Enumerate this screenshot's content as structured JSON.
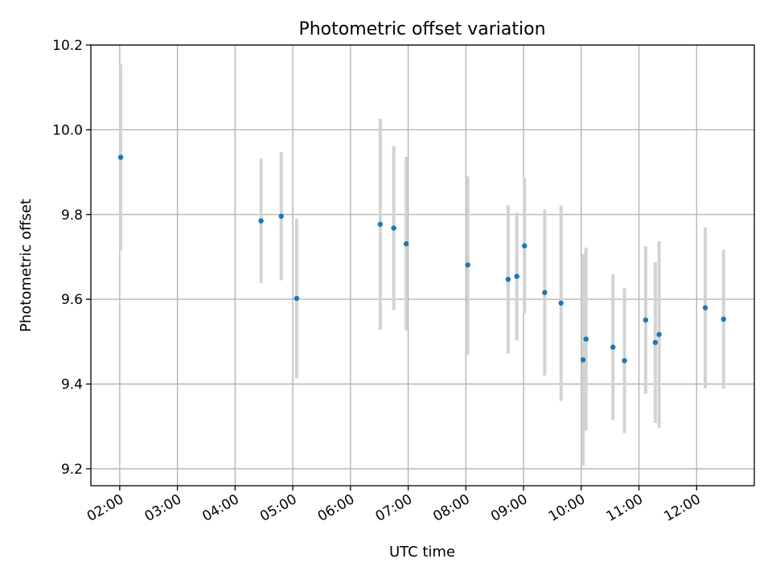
{
  "chart_data": {
    "type": "scatter",
    "title": "Photometric offset variation",
    "xlabel": "UTC time",
    "ylabel": "Photometric offset",
    "ylim": [
      9.16,
      10.2
    ],
    "yticks": [
      9.2,
      9.4,
      9.6,
      9.8,
      10.0,
      10.2
    ],
    "ytick_labels": [
      "9.2",
      "9.4",
      "9.6",
      "9.8",
      "10.0",
      "10.2"
    ],
    "xlim": [
      "01:30",
      "13:00"
    ],
    "xticks": [
      "02:00",
      "03:00",
      "04:00",
      "05:00",
      "06:00",
      "07:00",
      "08:00",
      "09:00",
      "10:00",
      "11:00",
      "12:00"
    ],
    "grid": true,
    "series": [
      {
        "color": "#1f77b4",
        "error_bar_color": "#d3d3d3",
        "points": [
          {
            "x": "02:01",
            "y": 9.935,
            "y_low": 9.715,
            "y_high": 10.155
          },
          {
            "x": "04:27",
            "y": 9.785,
            "y_low": 9.638,
            "y_high": 9.932
          },
          {
            "x": "04:48",
            "y": 9.796,
            "y_low": 9.645,
            "y_high": 9.947
          },
          {
            "x": "05:04",
            "y": 9.602,
            "y_low": 9.413,
            "y_high": 9.79
          },
          {
            "x": "06:31",
            "y": 9.777,
            "y_low": 9.528,
            "y_high": 10.026
          },
          {
            "x": "06:45",
            "y": 9.768,
            "y_low": 9.575,
            "y_high": 9.961
          },
          {
            "x": "06:58",
            "y": 9.731,
            "y_low": 9.526,
            "y_high": 9.936
          },
          {
            "x": "08:02",
            "y": 9.681,
            "y_low": 9.47,
            "y_high": 9.89
          },
          {
            "x": "08:44",
            "y": 9.647,
            "y_low": 9.472,
            "y_high": 9.822
          },
          {
            "x": "08:53",
            "y": 9.654,
            "y_low": 9.503,
            "y_high": 9.805
          },
          {
            "x": "09:01",
            "y": 9.726,
            "y_low": 9.566,
            "y_high": 9.886
          },
          {
            "x": "09:22",
            "y": 9.616,
            "y_low": 9.42,
            "y_high": 9.812
          },
          {
            "x": "09:39",
            "y": 9.591,
            "y_low": 9.36,
            "y_high": 9.821
          },
          {
            "x": "10:02",
            "y": 9.457,
            "y_low": 9.207,
            "y_high": 9.707
          },
          {
            "x": "10:05",
            "y": 9.506,
            "y_low": 9.29,
            "y_high": 9.722
          },
          {
            "x": "10:33",
            "y": 9.487,
            "y_low": 9.315,
            "y_high": 9.659
          },
          {
            "x": "10:45",
            "y": 9.455,
            "y_low": 9.284,
            "y_high": 9.626
          },
          {
            "x": "11:07",
            "y": 9.551,
            "y_low": 9.377,
            "y_high": 9.725
          },
          {
            "x": "11:17",
            "y": 9.498,
            "y_low": 9.308,
            "y_high": 9.688
          },
          {
            "x": "11:21",
            "y": 9.517,
            "y_low": 9.297,
            "y_high": 9.737
          },
          {
            "x": "12:09",
            "y": 9.58,
            "y_low": 9.39,
            "y_high": 9.77
          },
          {
            "x": "12:28",
            "y": 9.553,
            "y_low": 9.389,
            "y_high": 9.717
          }
        ]
      }
    ]
  }
}
